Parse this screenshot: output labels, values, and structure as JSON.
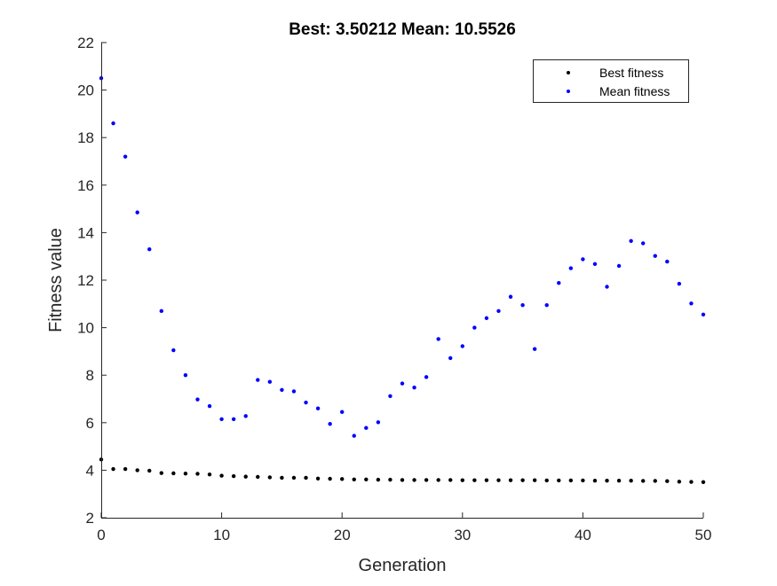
{
  "chart_data": {
    "type": "scatter",
    "title": "Best: 3.50212 Mean: 10.5526",
    "xlabel": "Generation",
    "ylabel": "Fitness value",
    "xlim": [
      0,
      50
    ],
    "ylim": [
      2,
      22
    ],
    "xticks": [
      0,
      10,
      20,
      30,
      40,
      50
    ],
    "yticks": [
      2,
      4,
      6,
      8,
      10,
      12,
      14,
      16,
      18,
      20,
      22
    ],
    "grid": false,
    "legend_position": "top-right",
    "x": [
      0,
      1,
      2,
      3,
      4,
      5,
      6,
      7,
      8,
      9,
      10,
      11,
      12,
      13,
      14,
      15,
      16,
      17,
      18,
      19,
      20,
      21,
      22,
      23,
      24,
      25,
      26,
      27,
      28,
      29,
      30,
      31,
      32,
      33,
      34,
      35,
      36,
      37,
      38,
      39,
      40,
      41,
      42,
      43,
      44,
      45,
      46,
      47,
      48,
      49,
      50
    ],
    "series": [
      {
        "name": "Best fitness",
        "color": "#000000",
        "values": [
          4.45,
          4.05,
          4.05,
          4.0,
          3.98,
          3.88,
          3.87,
          3.86,
          3.85,
          3.82,
          3.77,
          3.75,
          3.73,
          3.72,
          3.7,
          3.68,
          3.68,
          3.68,
          3.65,
          3.64,
          3.63,
          3.61,
          3.61,
          3.6,
          3.6,
          3.59,
          3.59,
          3.59,
          3.59,
          3.59,
          3.58,
          3.58,
          3.58,
          3.58,
          3.58,
          3.58,
          3.58,
          3.57,
          3.57,
          3.57,
          3.57,
          3.56,
          3.56,
          3.56,
          3.56,
          3.55,
          3.55,
          3.54,
          3.52,
          3.51,
          3.5
        ]
      },
      {
        "name": "Mean fitness",
        "color": "#0000ff",
        "values": [
          20.5,
          18.6,
          17.2,
          14.85,
          13.3,
          10.7,
          9.05,
          8.0,
          6.98,
          6.7,
          6.15,
          6.15,
          6.28,
          7.8,
          7.72,
          7.38,
          7.32,
          6.85,
          6.6,
          5.95,
          6.45,
          5.45,
          5.78,
          6.02,
          7.12,
          7.65,
          7.48,
          7.92,
          9.52,
          8.72,
          9.22,
          10.0,
          10.4,
          10.7,
          11.3,
          10.95,
          9.1,
          10.95,
          11.88,
          12.5,
          12.88,
          12.68,
          11.72,
          12.6,
          13.65,
          13.55,
          13.02,
          12.78,
          11.85,
          11.02,
          10.55
        ]
      }
    ]
  }
}
